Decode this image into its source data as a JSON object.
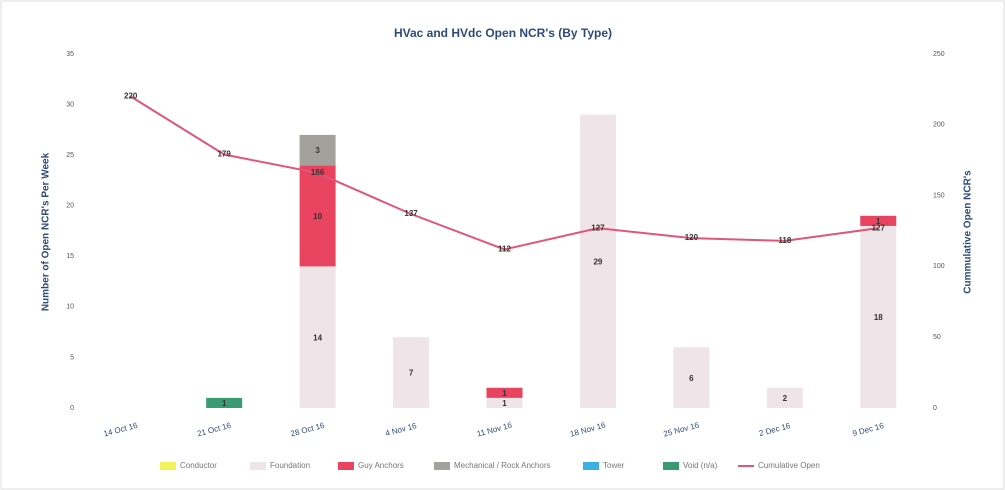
{
  "chart_data": {
    "type": "bar",
    "stacked": true,
    "title": "HVac and HVdc Open NCR's (By Type)",
    "y_label": "Number of Open NCR's Per Week",
    "y2_label": "Cummulative Open NCR's",
    "categories": [
      "14 Oct 16",
      "21 Oct 16",
      "28 Oct 16",
      "4 Nov 16",
      "11 Nov 16",
      "18 Nov 16",
      "25 Nov 16",
      "2 Dec 16",
      "9 Dec 16"
    ],
    "series": [
      {
        "name": "Conductor",
        "color": "#f2f25a",
        "values": [
          null,
          null,
          null,
          null,
          null,
          null,
          null,
          null,
          null
        ]
      },
      {
        "name": "Foundation",
        "color": "#efe4e8",
        "values": [
          null,
          null,
          14,
          7,
          1,
          29,
          6,
          2,
          18
        ]
      },
      {
        "name": "Guy Anchors",
        "color": "#e8435f",
        "values": [
          null,
          null,
          10,
          null,
          1,
          null,
          null,
          null,
          1
        ]
      },
      {
        "name": "Mechanical / Rock Anchors",
        "color": "#a3a19c",
        "values": [
          null,
          null,
          3,
          null,
          null,
          null,
          null,
          null,
          null
        ]
      },
      {
        "name": "Tower",
        "color": "#3cb0e0",
        "values": [
          null,
          null,
          null,
          null,
          null,
          null,
          null,
          null,
          null
        ]
      },
      {
        "name": "Void (n/a)",
        "color": "#3a9a72",
        "values": [
          null,
          1,
          null,
          null,
          null,
          null,
          null,
          null,
          null
        ]
      },
      {
        "name": "Cumulative Open",
        "type": "line",
        "axis": "y2",
        "color": "#e0557a",
        "values": [
          220,
          179,
          166,
          137,
          112,
          127,
          120,
          118,
          127
        ]
      }
    ],
    "ylim": [
      0,
      35
    ],
    "yticks": [
      0,
      5,
      10,
      15,
      20,
      25,
      30,
      35
    ],
    "y2lim": [
      0,
      250
    ],
    "y2ticks": [
      0,
      50,
      100,
      150,
      200,
      250
    ],
    "legend": "bottom"
  }
}
